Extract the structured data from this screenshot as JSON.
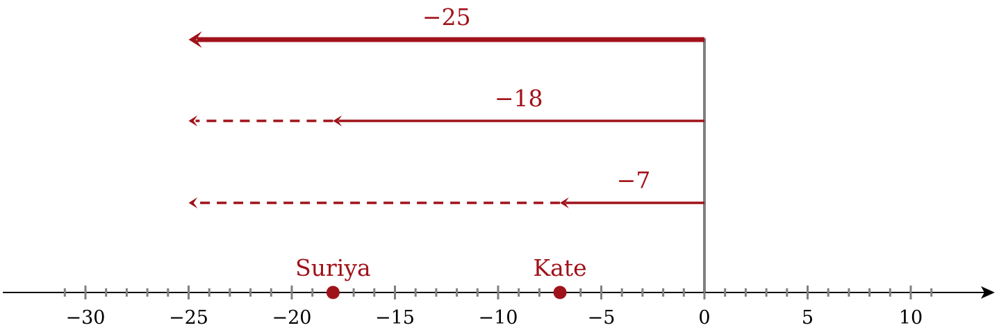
{
  "colors": {
    "accent": "#a0121a",
    "axis": "#000000",
    "tick": "#808080",
    "zero_line": "#808080"
  },
  "number_line": {
    "min": -30,
    "max": 10,
    "labeled_ticks": [
      -30,
      -25,
      -20,
      -15,
      -10,
      -5,
      0,
      5,
      10
    ],
    "tick_labels": [
      "−30",
      "−25",
      "−20",
      "−15",
      "−10",
      "−5",
      "0",
      "5",
      "10"
    ]
  },
  "arrows": [
    {
      "label": "−25",
      "value": -25,
      "extends_to": -25,
      "style": "solid-thick"
    },
    {
      "label": "−18",
      "value": -18,
      "extends_to": -25,
      "style": "solid"
    },
    {
      "label": "−7",
      "value": -7,
      "extends_to": -25,
      "style": "solid"
    }
  ],
  "points": [
    {
      "name": "Suriya",
      "value": -18
    },
    {
      "name": "Kate",
      "value": -7
    }
  ]
}
